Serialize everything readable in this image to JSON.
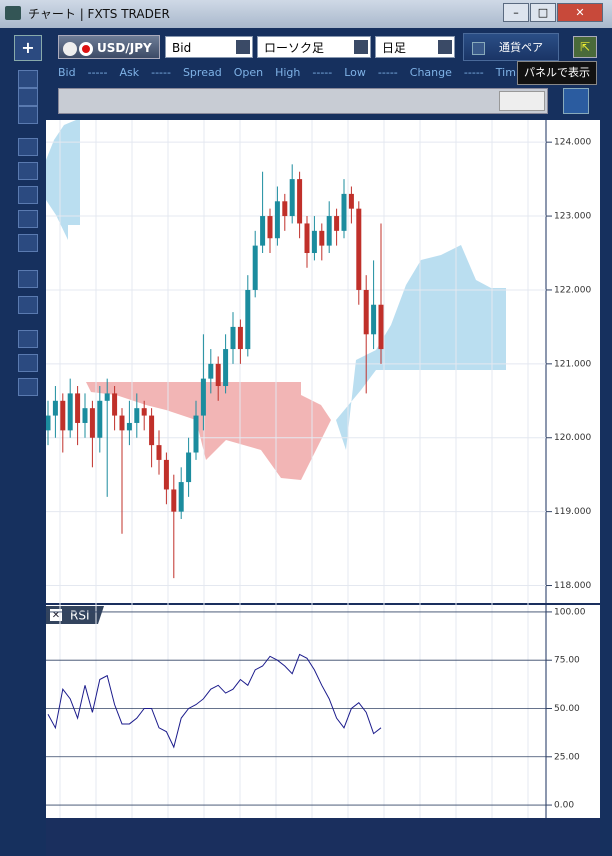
{
  "window": {
    "title": "チャート | FXTS TRADER"
  },
  "toolbar": {
    "add": "+",
    "symbol": "USD/JPY",
    "price_type": "Bid",
    "chart_style": "ローソク足",
    "period": "日足",
    "pair_label": "通貨ペア"
  },
  "tooltip": "パネルで表示",
  "quote_bar": [
    "Bid",
    "-----",
    "Ask",
    "-----",
    "Spread",
    "Open",
    "High",
    "-----",
    "Low",
    "-----",
    "Change",
    "-----",
    "Tim"
  ],
  "chart_data": [
    {
      "type": "candlestick",
      "up_color": "#1b8c9e",
      "down_color": "#c0302a",
      "grid": true,
      "ylim": [
        117.75,
        124.3
      ],
      "yticks": [
        {
          "value": 124,
          "label": "124.000"
        },
        {
          "value": 123,
          "label": "123.000"
        },
        {
          "value": 122,
          "label": "122.000"
        },
        {
          "value": 121,
          "label": "121.000"
        },
        {
          "value": 120,
          "label": "120.000"
        },
        {
          "value": 119,
          "label": "119.000"
        },
        {
          "value": 118,
          "label": "118.000"
        }
      ],
      "ohlc": [
        [
          120.1,
          120.5,
          119.9,
          120.3
        ],
        [
          120.3,
          120.7,
          120.0,
          120.5
        ],
        [
          120.5,
          120.6,
          119.8,
          120.1
        ],
        [
          120.1,
          120.8,
          120.0,
          120.6
        ],
        [
          120.6,
          120.7,
          119.9,
          120.2
        ],
        [
          120.2,
          120.6,
          120.0,
          120.4
        ],
        [
          120.4,
          120.5,
          119.6,
          120.0
        ],
        [
          120.0,
          120.7,
          119.8,
          120.5
        ],
        [
          120.5,
          120.8,
          119.2,
          120.6
        ],
        [
          120.6,
          120.7,
          120.1,
          120.3
        ],
        [
          120.3,
          120.4,
          118.7,
          120.1
        ],
        [
          120.1,
          120.5,
          119.9,
          120.2
        ],
        [
          120.2,
          120.6,
          120.0,
          120.4
        ],
        [
          120.4,
          120.5,
          120.1,
          120.3
        ],
        [
          120.3,
          120.4,
          119.6,
          119.9
        ],
        [
          119.9,
          120.1,
          119.5,
          119.7
        ],
        [
          119.7,
          119.8,
          119.1,
          119.3
        ],
        [
          119.3,
          119.5,
          118.1,
          119.0
        ],
        [
          119.0,
          119.6,
          118.9,
          119.4
        ],
        [
          119.4,
          120.0,
          119.2,
          119.8
        ],
        [
          119.8,
          120.5,
          119.7,
          120.3
        ],
        [
          120.3,
          121.4,
          120.1,
          120.8
        ],
        [
          120.8,
          121.2,
          120.6,
          121.0
        ],
        [
          121.0,
          121.1,
          120.5,
          120.7
        ],
        [
          120.7,
          121.4,
          120.6,
          121.2
        ],
        [
          121.2,
          121.7,
          121.0,
          121.5
        ],
        [
          121.5,
          121.6,
          121.0,
          121.2
        ],
        [
          121.2,
          122.2,
          121.1,
          122.0
        ],
        [
          122.0,
          122.8,
          121.9,
          122.6
        ],
        [
          122.6,
          123.6,
          122.5,
          123.0
        ],
        [
          123.0,
          123.1,
          122.5,
          122.7
        ],
        [
          122.7,
          123.4,
          122.6,
          123.2
        ],
        [
          123.2,
          123.3,
          122.8,
          123.0
        ],
        [
          123.0,
          123.7,
          122.9,
          123.5
        ],
        [
          123.5,
          123.6,
          122.7,
          122.9
        ],
        [
          122.9,
          123.0,
          122.3,
          122.5
        ],
        [
          122.5,
          123.0,
          122.4,
          122.8
        ],
        [
          122.8,
          122.9,
          122.4,
          122.6
        ],
        [
          122.6,
          123.2,
          122.5,
          123.0
        ],
        [
          123.0,
          123.1,
          122.6,
          122.8
        ],
        [
          122.8,
          123.5,
          122.7,
          123.3
        ],
        [
          123.3,
          123.4,
          122.9,
          123.1
        ],
        [
          123.1,
          123.2,
          121.8,
          122.0
        ],
        [
          122.0,
          122.2,
          120.6,
          121.4
        ],
        [
          121.4,
          122.4,
          121.2,
          121.8
        ],
        [
          121.8,
          122.9,
          121.0,
          121.2
        ]
      ]
    },
    {
      "type": "line",
      "title": "RSI",
      "color": "#1c1c8c",
      "grid": true,
      "ylim": [
        -6.7,
        104.1
      ],
      "yticks": [
        {
          "value": 100,
          "label": "100.00"
        },
        {
          "value": 75,
          "label": "75.00"
        },
        {
          "value": 50,
          "label": "50.00"
        },
        {
          "value": 25,
          "label": "25.00"
        },
        {
          "value": 0,
          "label": "0.00"
        }
      ],
      "values": [
        47,
        40,
        60,
        55,
        45,
        62,
        48,
        65,
        67,
        52,
        42,
        42,
        45,
        50,
        50,
        40,
        38,
        30,
        45,
        50,
        52,
        55,
        60,
        62,
        58,
        60,
        65,
        62,
        70,
        72,
        77,
        75,
        72,
        68,
        78,
        76,
        70,
        62,
        55,
        45,
        40,
        50,
        53,
        48,
        37,
        40
      ]
    }
  ]
}
